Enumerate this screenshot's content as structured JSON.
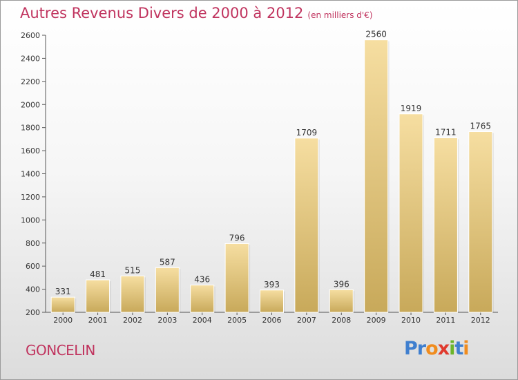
{
  "chart_title": "Autres Revenus Divers de 2000 à 2012",
  "chart_unit": "(en milliers d'€)",
  "location_label": "GONCELIN",
  "brand": {
    "name": "Proxiti",
    "letters": [
      "P",
      "r",
      "o",
      "x",
      "i",
      "t",
      "i"
    ],
    "colors": [
      "#3f7fcf",
      "#3f7fcf",
      "#f08c1e",
      "#e03a2e",
      "#6bb52a",
      "#3f7fcf",
      "#f08c1e"
    ]
  },
  "colors": {
    "accent": "#c0335e",
    "bar_top": "#f6dea1",
    "bar_bottom": "#c8a95a"
  },
  "chart_data": {
    "type": "bar",
    "categories": [
      "2000",
      "2001",
      "2002",
      "2003",
      "2004",
      "2005",
      "2006",
      "2007",
      "2008",
      "2009",
      "2010",
      "2011",
      "2012"
    ],
    "values": [
      331,
      481,
      515,
      587,
      436,
      796,
      393,
      1709,
      396,
      2560,
      1919,
      1711,
      1765
    ],
    "value_labels": [
      "331",
      "481",
      "515",
      "587",
      "436",
      "796",
      "393",
      "1709",
      "396",
      "2560",
      "1919",
      "1711",
      "1765"
    ],
    "yticks": [
      200,
      400,
      600,
      800,
      1000,
      1200,
      1400,
      1600,
      1800,
      2000,
      2200,
      2400,
      2600
    ],
    "ylim": [
      200,
      2600
    ],
    "grid": false
  }
}
